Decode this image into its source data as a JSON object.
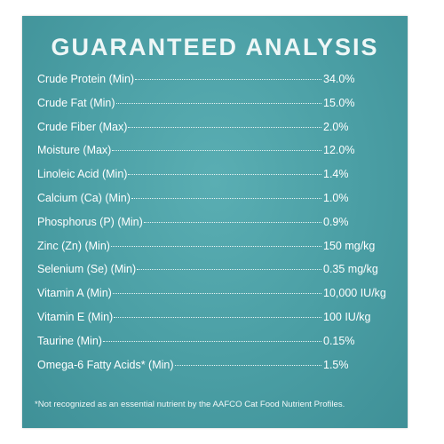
{
  "header": {
    "title": "GUARANTEED ANALYSIS"
  },
  "rows": [
    {
      "label": "Crude Protein (Min)",
      "value": "34.0%"
    },
    {
      "label": "Crude Fat (Min)",
      "value": "15.0%"
    },
    {
      "label": "Crude Fiber (Max)",
      "value": "2.0%"
    },
    {
      "label": "Moisture (Max)",
      "value": "12.0%"
    },
    {
      "label": "Linoleic Acid (Min)",
      "value": "1.4%"
    },
    {
      "label": "Calcium (Ca) (Min)",
      "value": "1.0%"
    },
    {
      "label": "Phosphorus (P) (Min)",
      "value": "0.9%"
    },
    {
      "label": "Zinc (Zn) (Min)",
      "value": "150 mg/kg"
    },
    {
      "label": "Selenium (Se) (Min)",
      "value": "0.35 mg/kg"
    },
    {
      "label": "Vitamin A (Min)",
      "value": "10,000 IU/kg"
    },
    {
      "label": "Vitamin E (Min)",
      "value": "100 IU/kg"
    },
    {
      "label": "Taurine (Min)",
      "value": "0.15%"
    },
    {
      "label": "Omega-6 Fatty Acids* (Min)",
      "value": "1.5%"
    }
  ],
  "footnote": "*Not recognized as an essential nutrient by the AAFCO Cat Food Nutrient Profiles."
}
